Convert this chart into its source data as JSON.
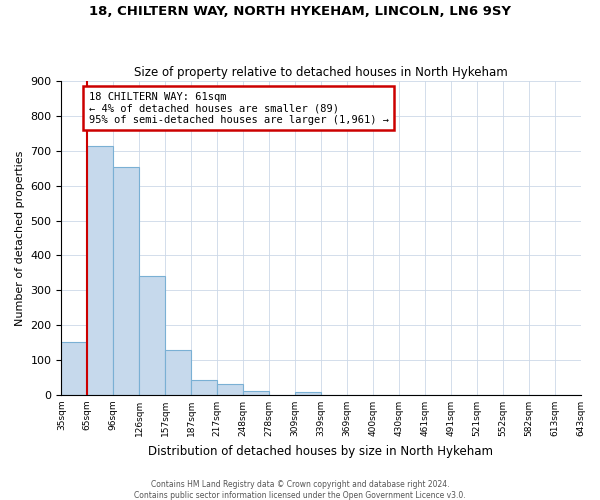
{
  "title": "18, CHILTERN WAY, NORTH HYKEHAM, LINCOLN, LN6 9SY",
  "subtitle": "Size of property relative to detached houses in North Hykeham",
  "xlabel": "Distribution of detached houses by size in North Hykeham",
  "ylabel": "Number of detached properties",
  "bar_values": [
    153,
    714,
    653,
    340,
    130,
    42,
    30,
    11,
    0,
    8,
    0,
    0,
    0,
    0,
    0,
    0,
    0,
    0,
    0,
    0
  ],
  "categories": [
    "35sqm",
    "65sqm",
    "96sqm",
    "126sqm",
    "157sqm",
    "187sqm",
    "217sqm",
    "248sqm",
    "278sqm",
    "309sqm",
    "339sqm",
    "369sqm",
    "400sqm",
    "430sqm",
    "461sqm",
    "491sqm",
    "521sqm",
    "552sqm",
    "582sqm",
    "613sqm",
    "643sqm"
  ],
  "bar_color": "#c6d9ec",
  "bar_edge_color": "#7ab0d4",
  "highlight_line_color": "#cc0000",
  "annotation_title": "18 CHILTERN WAY: 61sqm",
  "annotation_line1": "← 4% of detached houses are smaller (89)",
  "annotation_line2": "95% of semi-detached houses are larger (1,961) →",
  "annotation_box_color": "#cc0000",
  "ylim": [
    0,
    900
  ],
  "yticks": [
    0,
    100,
    200,
    300,
    400,
    500,
    600,
    700,
    800,
    900
  ],
  "footer1": "Contains HM Land Registry data © Crown copyright and database right 2024.",
  "footer2": "Contains public sector information licensed under the Open Government Licence v3.0.",
  "background_color": "#ffffff",
  "grid_color": "#ccd8e8"
}
